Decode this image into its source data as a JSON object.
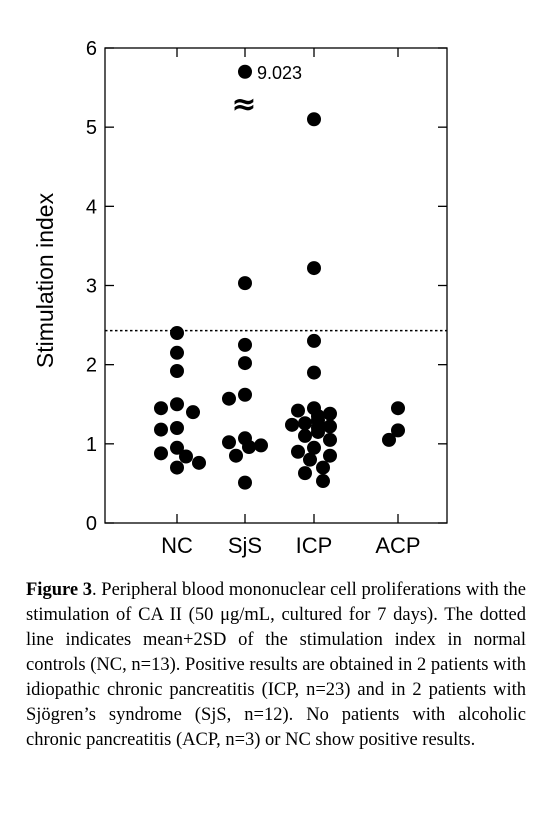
{
  "chart_data": {
    "type": "scatter",
    "ylabel": "Stimulation index",
    "ylim": [
      0,
      6
    ],
    "yticks": [
      "0",
      "1",
      "2",
      "3",
      "4",
      "5",
      "6"
    ],
    "categories": [
      "NC",
      "SjS",
      "ICP",
      "ACP"
    ],
    "threshold": 2.43,
    "series": [
      {
        "category": "NC",
        "values": [
          2.4,
          2.15,
          1.92,
          1.5,
          1.45,
          1.4,
          1.2,
          1.18,
          0.95,
          0.88,
          0.84,
          0.76,
          0.7
        ]
      },
      {
        "category": "SjS",
        "values": [
          5.7,
          3.03,
          2.25,
          2.02,
          1.62,
          1.57,
          1.07,
          1.02,
          0.98,
          0.96,
          0.85,
          0.51
        ]
      },
      {
        "category": "ICP",
        "values": [
          5.1,
          3.22,
          2.3,
          1.9,
          1.45,
          1.42,
          1.38,
          1.35,
          1.3,
          1.26,
          1.24,
          1.22,
          1.2,
          1.15,
          1.1,
          1.05,
          0.95,
          0.9,
          0.85,
          0.8,
          0.7,
          0.63,
          0.53
        ]
      },
      {
        "category": "ACP",
        "values": [
          1.45,
          1.17,
          1.05
        ]
      }
    ],
    "annotation": {
      "category": "SjS",
      "text": "9.023"
    },
    "break_symbol": "≈"
  },
  "caption": {
    "label": "Figure 3",
    "text": ". Peripheral blood mononuclear cell proliferations with the stimulation of CA II (50 μg/mL, cultured for 7 days). The dotted line indicates mean+2SD of the stimulation index in normal controls (NC, n=13). Positive results are obtained in 2 patients with idiopathic chronic pancreatitis (ICP, n=23) and in 2 patients with Sjögren’s syndrome (SjS, n=12). No patients with alcoholic chronic pancreatitis (ACP, n=3) or NC show positive results."
  }
}
